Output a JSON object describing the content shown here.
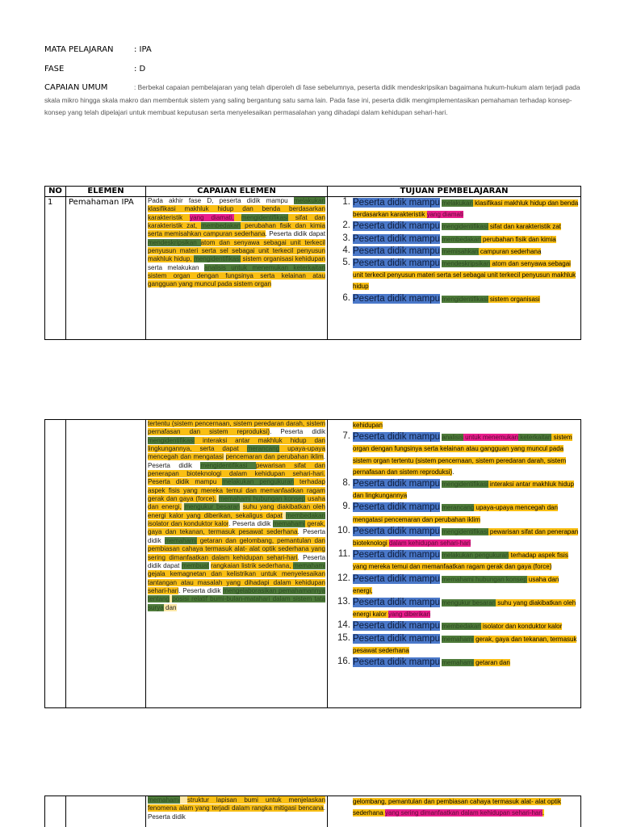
{
  "header": {
    "mata_pelajaran_label": "MATA PELAJARAN",
    "mata_pelajaran_value": ": IPA",
    "fase_label": "FASE",
    "fase_value": ": D",
    "capaian_umum_label": "CAPAIAN UMUM",
    "capaian_umum_text": ": Berbekal capaian pembelajaran yang telah diperoleh di fase sebelumnya, peserta didik mendeskripsikan bagaimana hukum-hukum alam terjadi pada skala mikro hingga skala makro dan membentuk sistem yang saling bergantung satu sama lain. Pada fase ini, peserta didik mengimplementasikan pemahaman terhadap konsep- konsep yang telah dipelajari untuk membuat keputusan serta menyelesaikan permasalahan yang dihadapi dalam kehidupan sehari-hari."
  },
  "table": {
    "columns": [
      "NO",
      "ELEMEN",
      "CAPAIAN ELEMEN",
      "TUJUAN PEMBELAJARAN"
    ],
    "row": {
      "no": "1",
      "elemen": "Pemahaman IPA"
    },
    "lead_phrase": "Peserta didik mampu",
    "capaian_page1": [
      {
        "t": "Pada akhir fase D, peserta didik mampu ",
        "c": "w"
      },
      {
        "t": "melakukan ",
        "c": "g"
      },
      {
        "t": "klasifikasi makhluk hidup dan benda berdasarkan karakteristik ",
        "c": "y"
      },
      {
        "t": "yang diamati,",
        "c": "m"
      },
      {
        "t": " ",
        "c": "y"
      },
      {
        "t": "mengidentifikasi",
        "c": "g"
      },
      {
        "t": " sifat dan karakteristik zat, ",
        "c": "y"
      },
      {
        "t": "membedakan",
        "c": "g"
      },
      {
        "t": " perubahan fisik dan kimia serta memisahkan campuran sederhana",
        "c": "y"
      },
      {
        "t": ". Peserta didik dapat",
        "c": "w"
      },
      {
        "t": " mendeskripsikan ",
        "c": "g"
      },
      {
        "t": " ",
        "c": "w"
      },
      {
        "t": "atom dan senyawa sebagai unit terkecil penyusun materi serta sel sebagai unit terkecil penyusun makhluk hidup, ",
        "c": "y"
      },
      {
        "t": "mengidentifikasi",
        "c": "g"
      },
      {
        "t": " sistem organisasi kehidupan",
        "c": "y"
      },
      {
        "t": " serta melakukan ",
        "c": "w"
      },
      {
        "t": "analisis untuk menemukan ",
        "c": "g"
      },
      {
        "t": "keterkaitan",
        "c": "g"
      },
      {
        "t": " ",
        "c": "ly"
      },
      {
        "t": "sistem organ dengan fungsinya serta kelainan atau gangguan yang muncul pada sistem organ",
        "c": "y"
      }
    ],
    "capaian_page2": [
      {
        "t": "tertentu (sistem pencernaan, sistem peredaran darah, sistem pernafasan dan sistem reproduksi)",
        "c": "y"
      },
      {
        "t": ". Peserta didik ",
        "c": "w"
      },
      {
        "t": "mengidentifikasi",
        "c": "g"
      },
      {
        "t": " interaksi antar makhluk hidup dan lingkungannya, serta dapat ",
        "c": "y"
      },
      {
        "t": "merancang",
        "c": "g"
      },
      {
        "t": " upaya-upaya mencegah dan mengatasi",
        "c": "y"
      },
      {
        "t": " ",
        "c": "ly"
      },
      {
        "t": "pencemaran dan perubahan iklim",
        "c": "y"
      },
      {
        "t": ". Peserta didik ",
        "c": "w"
      },
      {
        "t": "mengidentifikasi ",
        "c": "g"
      },
      {
        "t": "pewarisan sifat dan penerapan bioteknologi dalam kehidupan sehari-hari. Peserta didik mampu ",
        "c": "y"
      },
      {
        "t": " ",
        "c": "ly"
      },
      {
        "t": "melakukan pengukuran",
        "c": "g"
      },
      {
        "t": " terhadap aspek fisis yang mereka temui dan memanfaatkan ragam gerak dan gaya (force),",
        "c": "y"
      },
      {
        "t": " ",
        "c": "ly"
      },
      {
        "t": "memahami hubungan konsep",
        "c": "g"
      },
      {
        "t": " usaha dan energi,",
        "c": "y"
      },
      {
        "t": " ",
        "c": "ly"
      },
      {
        "t": "mengukur besaran",
        "c": "g"
      },
      {
        "t": " ",
        "c": "ly"
      },
      {
        "t": "suhu yang diakibatkan oleh energi kalor yang diberikan, sekaligus dapat",
        "c": "y"
      },
      {
        "t": " ",
        "c": "ly"
      },
      {
        "t": "membedakan",
        "c": "g"
      },
      {
        "t": " isolator dan konduktor kalor",
        "c": "y"
      },
      {
        "t": ". Peserta didik ",
        "c": "w"
      },
      {
        "t": "memahami",
        "c": "g"
      },
      {
        "t": " gerak, gaya dan tekanan, termasuk pesawat sederhana",
        "c": "y"
      },
      {
        "t": ". Peserta didik ",
        "c": "w"
      },
      {
        "t": "memahami",
        "c": "g"
      },
      {
        "t": " getaran dan gelombang, pemantulan dan pembiasan cahaya termasuk alat- alat optik sederhana yang sering dimanfaatkan dalam kehidupan sehari-hari",
        "c": "y"
      },
      {
        "t": ". Peserta didik dapat ",
        "c": "w"
      },
      {
        "t": "membuat",
        "c": "g"
      },
      {
        "t": " ",
        "c": "w"
      },
      {
        "t": " rangkaian listrik sederhana, ",
        "c": "y"
      },
      {
        "t": "memahami",
        "c": "g"
      },
      {
        "t": " gejala kemagnetan dan kelistrikan untuk menyelesaikan tantangan atau masalah yang dihadapi dalam kehidupan sehari-hari",
        "c": "y"
      },
      {
        "t": ". Peserta didik ",
        "c": "w"
      },
      {
        "t": "mengelaborasikan pemahamannya tentang",
        "c": "g"
      },
      {
        "t": " ",
        "c": "ly"
      },
      {
        "t": "posisi relatif bumi-bulan-matahari dalam sistem tata surya",
        "c": "g"
      },
      {
        "t": " dan",
        "c": "ly"
      }
    ],
    "capaian_page3": [
      {
        "t": "memahami",
        "c": "g"
      },
      {
        "t": " ",
        "c": "ly"
      },
      {
        "t": " struktur lapisan bumi untuk menjelaskan fenomena alam yang terjadi dalam rangka mitigasi bencana",
        "c": "y"
      },
      {
        "t": ". Peserta didik",
        "c": "w"
      }
    ],
    "tujuan_page1": [
      {
        "num": "1.",
        "parts": [
          {
            "t": "melakukan",
            "c": "g"
          },
          {
            "t": " klasifikasi makhluk hidup dan benda berdasarkan karakteristik ",
            "c": "y"
          },
          {
            "t": "yang diamati",
            "c": "m"
          }
        ]
      },
      {
        "num": "2.",
        "parts": [
          {
            "t": "mengidentifikasi",
            "c": "g"
          },
          {
            "t": " sifat dan karakteristik zat",
            "c": "y"
          }
        ]
      },
      {
        "num": "3.",
        "parts": [
          {
            "t": "membedakan",
            "c": "g"
          },
          {
            "t": " perubahan fisik dan kimia",
            "c": "y"
          }
        ]
      },
      {
        "num": "4.",
        "parts": [
          {
            "t": "memisahkan",
            "c": "g"
          },
          {
            "t": " campuran sederhana",
            "c": "y"
          }
        ]
      },
      {
        "num": "5.",
        "parts": [
          {
            "t": "mendeskripsikan",
            "c": "g"
          },
          {
            "t": " atom dan senyawa sebagai unit terkecil penyusun materi serta sel sebagai unit terkecil penyusun makhluk hidup",
            "c": "y"
          }
        ]
      },
      {
        "num": "6.",
        "parts": [
          {
            "t": "mengidentifikasi",
            "c": "g"
          },
          {
            "t": " sistem organisasi",
            "c": "y"
          }
        ]
      }
    ],
    "tujuan_page2_continuation": "kehidupan",
    "tujuan_page2": [
      {
        "num": "7.",
        "parts": [
          {
            "t": "analisis",
            "c": "g"
          },
          {
            "t": " untuk menemukan",
            "c": "m"
          },
          {
            "t": " keterkaitan",
            "c": "g"
          },
          {
            "t": " sistem organ dengan fungsinya serta kelainan atau gangguan yang muncul pada sistem organ tertentu (sistem pencernaan, sistem peredaran darah, sistem pernafasan dan sistem reproduksi)",
            "c": "y"
          },
          {
            "t": ".",
            "c": "w"
          }
        ]
      },
      {
        "num": "8.",
        "parts": [
          {
            "t": "mengidentifikasi",
            "c": "g"
          },
          {
            "t": " interaksi antar makhluk hidup dan lingkungannya",
            "c": "y"
          }
        ]
      },
      {
        "num": "9.",
        "parts": [
          {
            "t": "merancang",
            "c": "g"
          },
          {
            "t": " upaya-upaya mencegah dan mengatasi pencemaran dan perubahan iklim",
            "c": "y"
          }
        ]
      },
      {
        "num": "10.",
        "parts": [
          {
            "t": "mengidentifikasi",
            "c": "g"
          },
          {
            "t": " pewarisan sifat dan penerapan bioteknologi ",
            "c": "y"
          },
          {
            "t": "dalam kehidupan sehari-hari",
            "c": "m"
          }
        ]
      },
      {
        "num": "11.",
        "parts": [
          {
            "t": "melakukan pengukuran",
            "c": "g"
          },
          {
            "t": " terhadap aspek fisis yang mereka temui dan memanfaatkan ragam gerak dan gaya (force)",
            "c": "y"
          }
        ]
      },
      {
        "num": "12.",
        "parts": [
          {
            "t": "memahami hubungan konsep",
            "c": "g"
          },
          {
            "t": " usaha dan energi,",
            "c": "y"
          }
        ]
      },
      {
        "num": "13.",
        "parts": [
          {
            "t": "mengukur besaran",
            "c": "g"
          },
          {
            "t": " suhu yang diakibatkan oleh energi kalor ",
            "c": "y"
          },
          {
            "t": "yang diberikan",
            "c": "m"
          }
        ]
      },
      {
        "num": "14.",
        "parts": [
          {
            "t": "membedakan",
            "c": "g"
          },
          {
            "t": " isolator dan konduktor kalor",
            "c": "y"
          }
        ]
      },
      {
        "num": "15.",
        "parts": [
          {
            "t": "memahami",
            "c": "g"
          },
          {
            "t": " gerak, gaya dan tekanan, termasuk pesawat sederhana",
            "c": "y"
          }
        ]
      },
      {
        "num": "16.",
        "parts": [
          {
            "t": "memahami",
            "c": "g"
          },
          {
            "t": " getaran dan",
            "c": "y"
          }
        ]
      }
    ],
    "tujuan_page3": [
      {
        "t": "gelombang, pemantulan dan pembiasan cahaya termasuk alat- alat optik sederhana ",
        "c": "y"
      },
      {
        "t": "yang sering dimanfaatkan dalam kehidupan sehari-hari",
        "c": "m"
      },
      {
        "t": ".",
        "c": "y"
      }
    ]
  },
  "colors": {
    "highlight_yellow": "#f9bf14",
    "highlight_green": "#4e7b3a",
    "highlight_magenta": "#e91e8c",
    "highlight_blue": "#4a78c9"
  }
}
